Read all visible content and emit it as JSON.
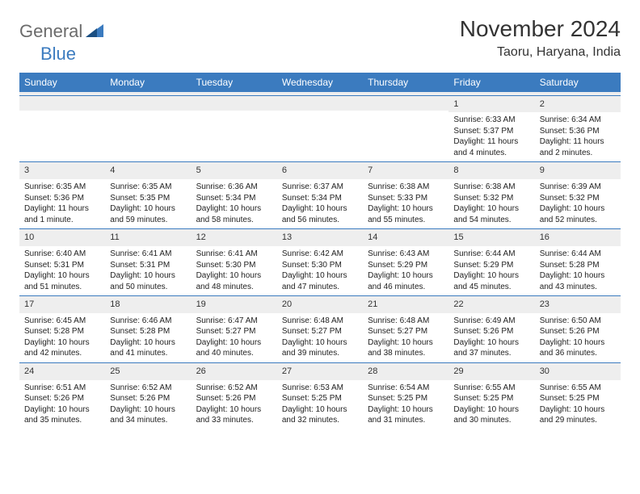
{
  "brand": {
    "part1": "General",
    "part2": "Blue"
  },
  "title": "November 2024",
  "location": "Taoru, Haryana, India",
  "colors": {
    "header_bg": "#3b7bbf",
    "header_text": "#ffffff",
    "daynum_bg": "#eeeeee",
    "border": "#3b7bbf",
    "text": "#222222",
    "brand_gray": "#6b6b6b",
    "brand_blue": "#3b7bbf"
  },
  "day_headers": [
    "Sunday",
    "Monday",
    "Tuesday",
    "Wednesday",
    "Thursday",
    "Friday",
    "Saturday"
  ],
  "weeks": [
    [
      {
        "n": "",
        "sr": "",
        "ss": "",
        "dl": ""
      },
      {
        "n": "",
        "sr": "",
        "ss": "",
        "dl": ""
      },
      {
        "n": "",
        "sr": "",
        "ss": "",
        "dl": ""
      },
      {
        "n": "",
        "sr": "",
        "ss": "",
        "dl": ""
      },
      {
        "n": "",
        "sr": "",
        "ss": "",
        "dl": ""
      },
      {
        "n": "1",
        "sr": "Sunrise: 6:33 AM",
        "ss": "Sunset: 5:37 PM",
        "dl": "Daylight: 11 hours and 4 minutes."
      },
      {
        "n": "2",
        "sr": "Sunrise: 6:34 AM",
        "ss": "Sunset: 5:36 PM",
        "dl": "Daylight: 11 hours and 2 minutes."
      }
    ],
    [
      {
        "n": "3",
        "sr": "Sunrise: 6:35 AM",
        "ss": "Sunset: 5:36 PM",
        "dl": "Daylight: 11 hours and 1 minute."
      },
      {
        "n": "4",
        "sr": "Sunrise: 6:35 AM",
        "ss": "Sunset: 5:35 PM",
        "dl": "Daylight: 10 hours and 59 minutes."
      },
      {
        "n": "5",
        "sr": "Sunrise: 6:36 AM",
        "ss": "Sunset: 5:34 PM",
        "dl": "Daylight: 10 hours and 58 minutes."
      },
      {
        "n": "6",
        "sr": "Sunrise: 6:37 AM",
        "ss": "Sunset: 5:34 PM",
        "dl": "Daylight: 10 hours and 56 minutes."
      },
      {
        "n": "7",
        "sr": "Sunrise: 6:38 AM",
        "ss": "Sunset: 5:33 PM",
        "dl": "Daylight: 10 hours and 55 minutes."
      },
      {
        "n": "8",
        "sr": "Sunrise: 6:38 AM",
        "ss": "Sunset: 5:32 PM",
        "dl": "Daylight: 10 hours and 54 minutes."
      },
      {
        "n": "9",
        "sr": "Sunrise: 6:39 AM",
        "ss": "Sunset: 5:32 PM",
        "dl": "Daylight: 10 hours and 52 minutes."
      }
    ],
    [
      {
        "n": "10",
        "sr": "Sunrise: 6:40 AM",
        "ss": "Sunset: 5:31 PM",
        "dl": "Daylight: 10 hours and 51 minutes."
      },
      {
        "n": "11",
        "sr": "Sunrise: 6:41 AM",
        "ss": "Sunset: 5:31 PM",
        "dl": "Daylight: 10 hours and 50 minutes."
      },
      {
        "n": "12",
        "sr": "Sunrise: 6:41 AM",
        "ss": "Sunset: 5:30 PM",
        "dl": "Daylight: 10 hours and 48 minutes."
      },
      {
        "n": "13",
        "sr": "Sunrise: 6:42 AM",
        "ss": "Sunset: 5:30 PM",
        "dl": "Daylight: 10 hours and 47 minutes."
      },
      {
        "n": "14",
        "sr": "Sunrise: 6:43 AM",
        "ss": "Sunset: 5:29 PM",
        "dl": "Daylight: 10 hours and 46 minutes."
      },
      {
        "n": "15",
        "sr": "Sunrise: 6:44 AM",
        "ss": "Sunset: 5:29 PM",
        "dl": "Daylight: 10 hours and 45 minutes."
      },
      {
        "n": "16",
        "sr": "Sunrise: 6:44 AM",
        "ss": "Sunset: 5:28 PM",
        "dl": "Daylight: 10 hours and 43 minutes."
      }
    ],
    [
      {
        "n": "17",
        "sr": "Sunrise: 6:45 AM",
        "ss": "Sunset: 5:28 PM",
        "dl": "Daylight: 10 hours and 42 minutes."
      },
      {
        "n": "18",
        "sr": "Sunrise: 6:46 AM",
        "ss": "Sunset: 5:28 PM",
        "dl": "Daylight: 10 hours and 41 minutes."
      },
      {
        "n": "19",
        "sr": "Sunrise: 6:47 AM",
        "ss": "Sunset: 5:27 PM",
        "dl": "Daylight: 10 hours and 40 minutes."
      },
      {
        "n": "20",
        "sr": "Sunrise: 6:48 AM",
        "ss": "Sunset: 5:27 PM",
        "dl": "Daylight: 10 hours and 39 minutes."
      },
      {
        "n": "21",
        "sr": "Sunrise: 6:48 AM",
        "ss": "Sunset: 5:27 PM",
        "dl": "Daylight: 10 hours and 38 minutes."
      },
      {
        "n": "22",
        "sr": "Sunrise: 6:49 AM",
        "ss": "Sunset: 5:26 PM",
        "dl": "Daylight: 10 hours and 37 minutes."
      },
      {
        "n": "23",
        "sr": "Sunrise: 6:50 AM",
        "ss": "Sunset: 5:26 PM",
        "dl": "Daylight: 10 hours and 36 minutes."
      }
    ],
    [
      {
        "n": "24",
        "sr": "Sunrise: 6:51 AM",
        "ss": "Sunset: 5:26 PM",
        "dl": "Daylight: 10 hours and 35 minutes."
      },
      {
        "n": "25",
        "sr": "Sunrise: 6:52 AM",
        "ss": "Sunset: 5:26 PM",
        "dl": "Daylight: 10 hours and 34 minutes."
      },
      {
        "n": "26",
        "sr": "Sunrise: 6:52 AM",
        "ss": "Sunset: 5:26 PM",
        "dl": "Daylight: 10 hours and 33 minutes."
      },
      {
        "n": "27",
        "sr": "Sunrise: 6:53 AM",
        "ss": "Sunset: 5:25 PM",
        "dl": "Daylight: 10 hours and 32 minutes."
      },
      {
        "n": "28",
        "sr": "Sunrise: 6:54 AM",
        "ss": "Sunset: 5:25 PM",
        "dl": "Daylight: 10 hours and 31 minutes."
      },
      {
        "n": "29",
        "sr": "Sunrise: 6:55 AM",
        "ss": "Sunset: 5:25 PM",
        "dl": "Daylight: 10 hours and 30 minutes."
      },
      {
        "n": "30",
        "sr": "Sunrise: 6:55 AM",
        "ss": "Sunset: 5:25 PM",
        "dl": "Daylight: 10 hours and 29 minutes."
      }
    ]
  ]
}
